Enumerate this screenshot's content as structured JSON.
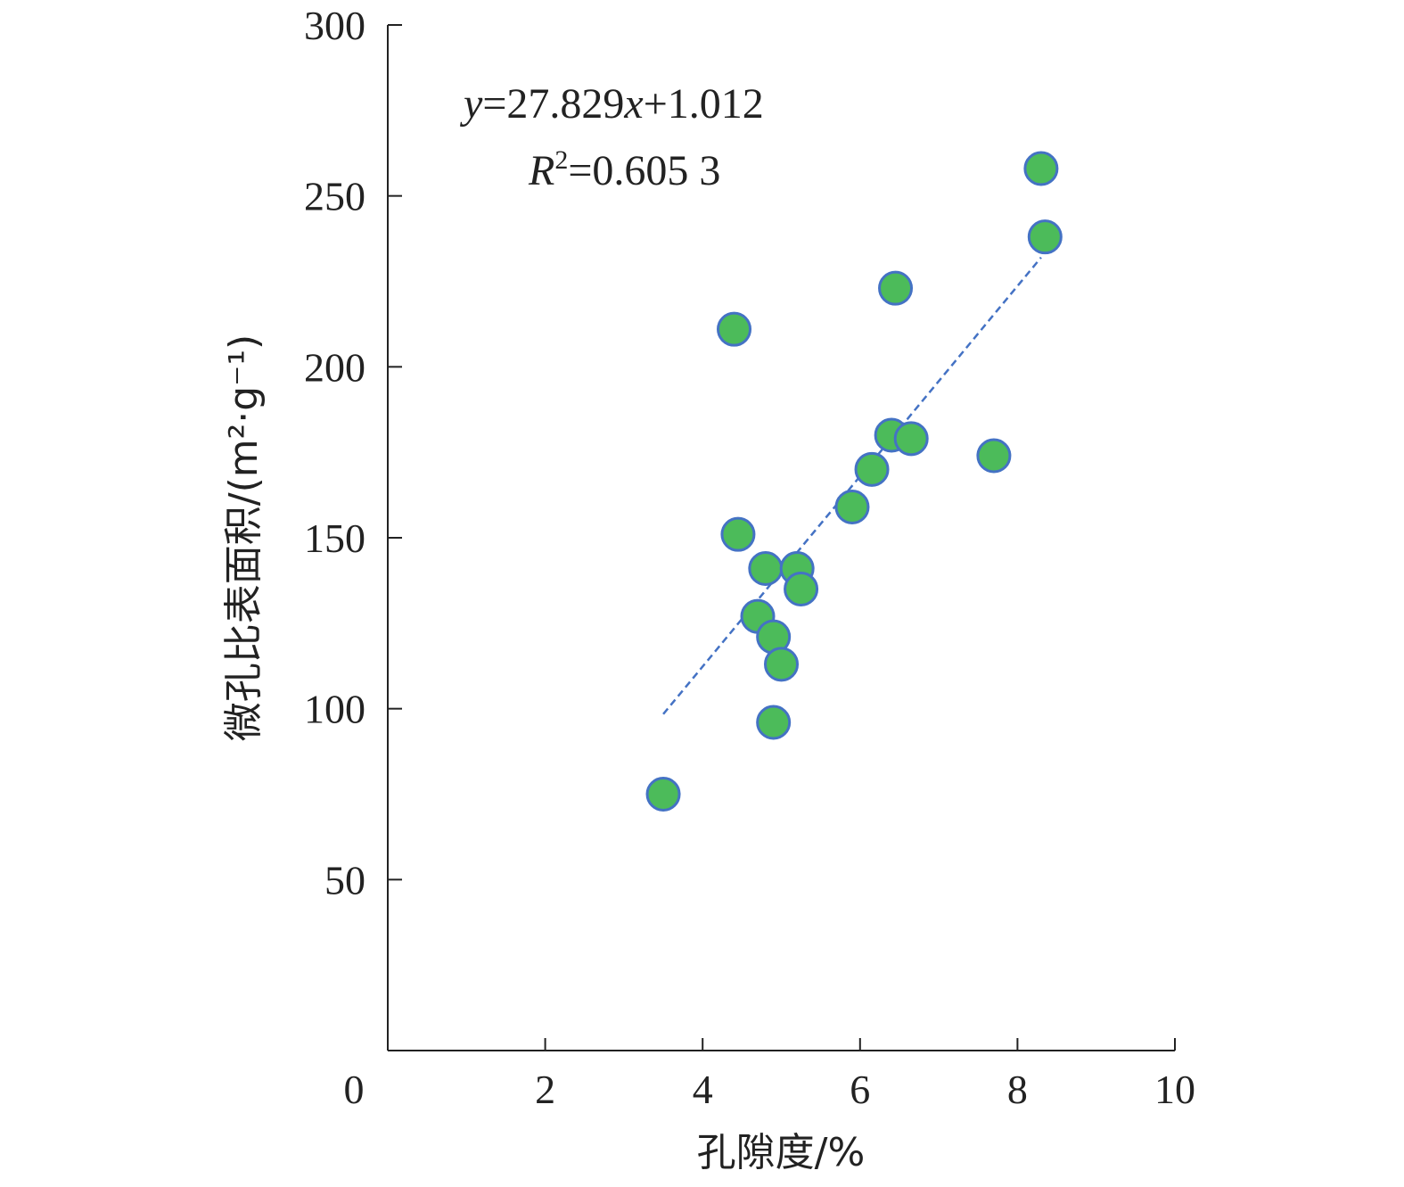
{
  "chart_data": {
    "type": "scatter",
    "xlabel": "孔隙度/%",
    "ylabel": "微孔比表面积/(m²·g⁻¹)",
    "xlim": [
      0,
      10
    ],
    "ylim": [
      0,
      300
    ],
    "x_ticks": [
      0,
      2,
      4,
      6,
      8,
      10
    ],
    "y_ticks": [
      50,
      100,
      150,
      200,
      250,
      300
    ],
    "x_tick_labels": [
      "0",
      "2",
      "4",
      "6",
      "8",
      "10"
    ],
    "y_tick_labels": [
      "50",
      "100",
      "150",
      "200",
      "250",
      "300"
    ],
    "grid": false,
    "legend": "none",
    "marker_fill": "#4cbb5a",
    "marker_edge": "#4472c4",
    "trendline_color": "#4472c4",
    "equation": {
      "y_var": "y",
      "rhs_a": "=27.829",
      "x_var": "x",
      "rhs_b": "+1.012",
      "r_var": "R",
      "r_sup": "2",
      "r_rhs": "=0.605 3"
    },
    "trendline": {
      "slope": 27.829,
      "intercept": 1.012,
      "x_start": 3.5,
      "x_end": 8.3
    },
    "points": [
      {
        "x": 3.5,
        "y": 75
      },
      {
        "x": 4.4,
        "y": 211
      },
      {
        "x": 4.45,
        "y": 151
      },
      {
        "x": 4.8,
        "y": 141
      },
      {
        "x": 4.7,
        "y": 127
      },
      {
        "x": 4.9,
        "y": 121
      },
      {
        "x": 5.0,
        "y": 113
      },
      {
        "x": 4.9,
        "y": 96
      },
      {
        "x": 5.2,
        "y": 141
      },
      {
        "x": 5.25,
        "y": 135
      },
      {
        "x": 5.9,
        "y": 159
      },
      {
        "x": 6.15,
        "y": 170
      },
      {
        "x": 6.4,
        "y": 180
      },
      {
        "x": 6.65,
        "y": 179
      },
      {
        "x": 6.45,
        "y": 223
      },
      {
        "x": 7.7,
        "y": 174
      },
      {
        "x": 8.3,
        "y": 258
      },
      {
        "x": 8.35,
        "y": 238
      }
    ]
  }
}
